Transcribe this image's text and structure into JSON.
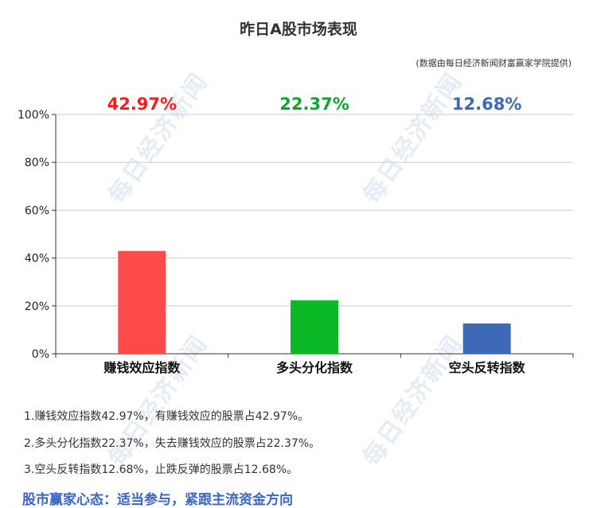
{
  "chart_data": {
    "type": "bar",
    "title": "昨日A股市场表现",
    "subtitle": "(数据由每日经济新闻财富赢家学院提供)",
    "categories": [
      "赚钱效应指数",
      "多头分化指数",
      "空头反转指数"
    ],
    "values": [
      42.97,
      22.37,
      12.68
    ],
    "value_labels": [
      "42.97%",
      "22.37%",
      "12.68%"
    ],
    "colors": [
      "#ff4a4a",
      "#0bb826",
      "#3c6ab7"
    ],
    "label_colors": [
      "#ff1a1a",
      "#0aa82a",
      "#3c6ab7"
    ],
    "ylim": [
      0,
      100
    ],
    "yticks": [
      0,
      20,
      40,
      60,
      80,
      100
    ],
    "ytick_labels": [
      "0%",
      "20%",
      "40%",
      "60%",
      "80%",
      "100%"
    ],
    "grid": true,
    "xlabel": "",
    "ylabel": ""
  },
  "notes": [
    "1.赚钱效应指数42.97%，有赚钱效应的股票占42.97%。",
    "2.多头分化指数22.37%，失去赚钱效应的股票占22.37%。",
    "3.空头反转指数12.68%，止跌反弹的股票占12.68%。"
  ],
  "slogan": "股市赢家心态：适当参与，紧跟主流资金方向",
  "watermark": "每日经济新闻"
}
